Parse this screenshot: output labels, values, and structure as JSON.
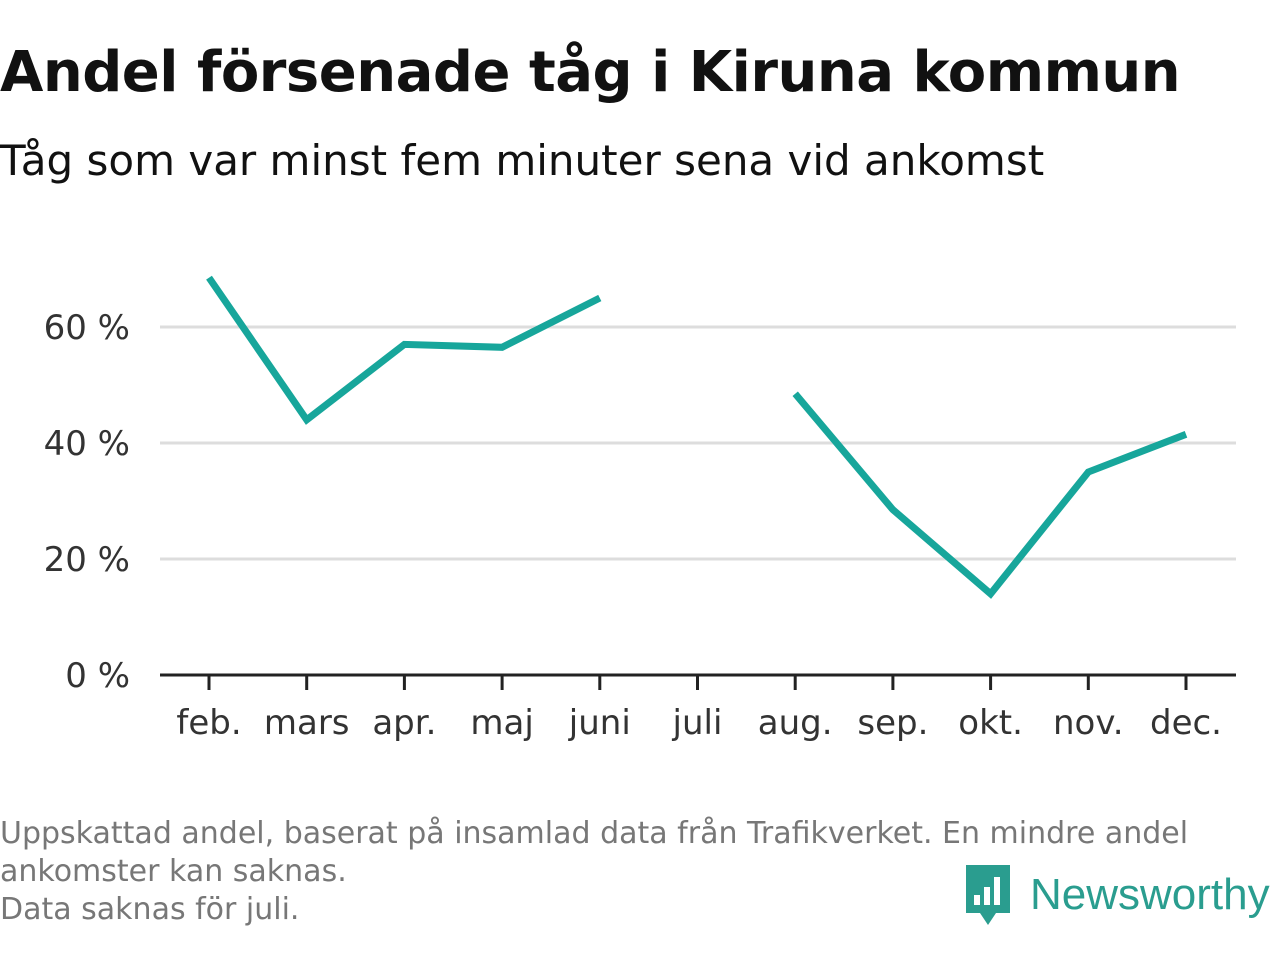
{
  "header": {
    "title": "Andel försenade tåg i Kiruna kommun",
    "subtitle": "Tåg som var minst fem minuter sena vid ankomst"
  },
  "footer": {
    "line1": "Uppskattad andel, baserat på insamlad data från Trafikverket. En mindre andel ankomster kan saknas.",
    "line2": "Data saknas för juli."
  },
  "brand": {
    "name": "Newsworthy",
    "logo_icon": "newsworthy-bar-chart-icon",
    "color": "#2a9d8f"
  },
  "colors": {
    "line": "#17a69b",
    "grid": "#dddddd",
    "axis": "#222222",
    "tick_text": "#333333"
  },
  "chart_data": {
    "type": "line",
    "categories": [
      "feb.",
      "mars",
      "apr.",
      "maj",
      "juni",
      "juli",
      "aug.",
      "sep.",
      "okt.",
      "nov.",
      "dec."
    ],
    "series": [
      {
        "values": [
          68.5,
          44,
          57,
          56.5,
          65,
          null,
          48.5,
          28.5,
          14,
          35,
          41.5
        ]
      }
    ],
    "y_ticks": [
      0,
      20,
      40,
      60
    ],
    "y_tick_labels": [
      "0 %",
      "20 %",
      "40 %",
      "60 %"
    ],
    "ylim": [
      0,
      75
    ],
    "grid": true,
    "xlabel": "",
    "ylabel": ""
  }
}
